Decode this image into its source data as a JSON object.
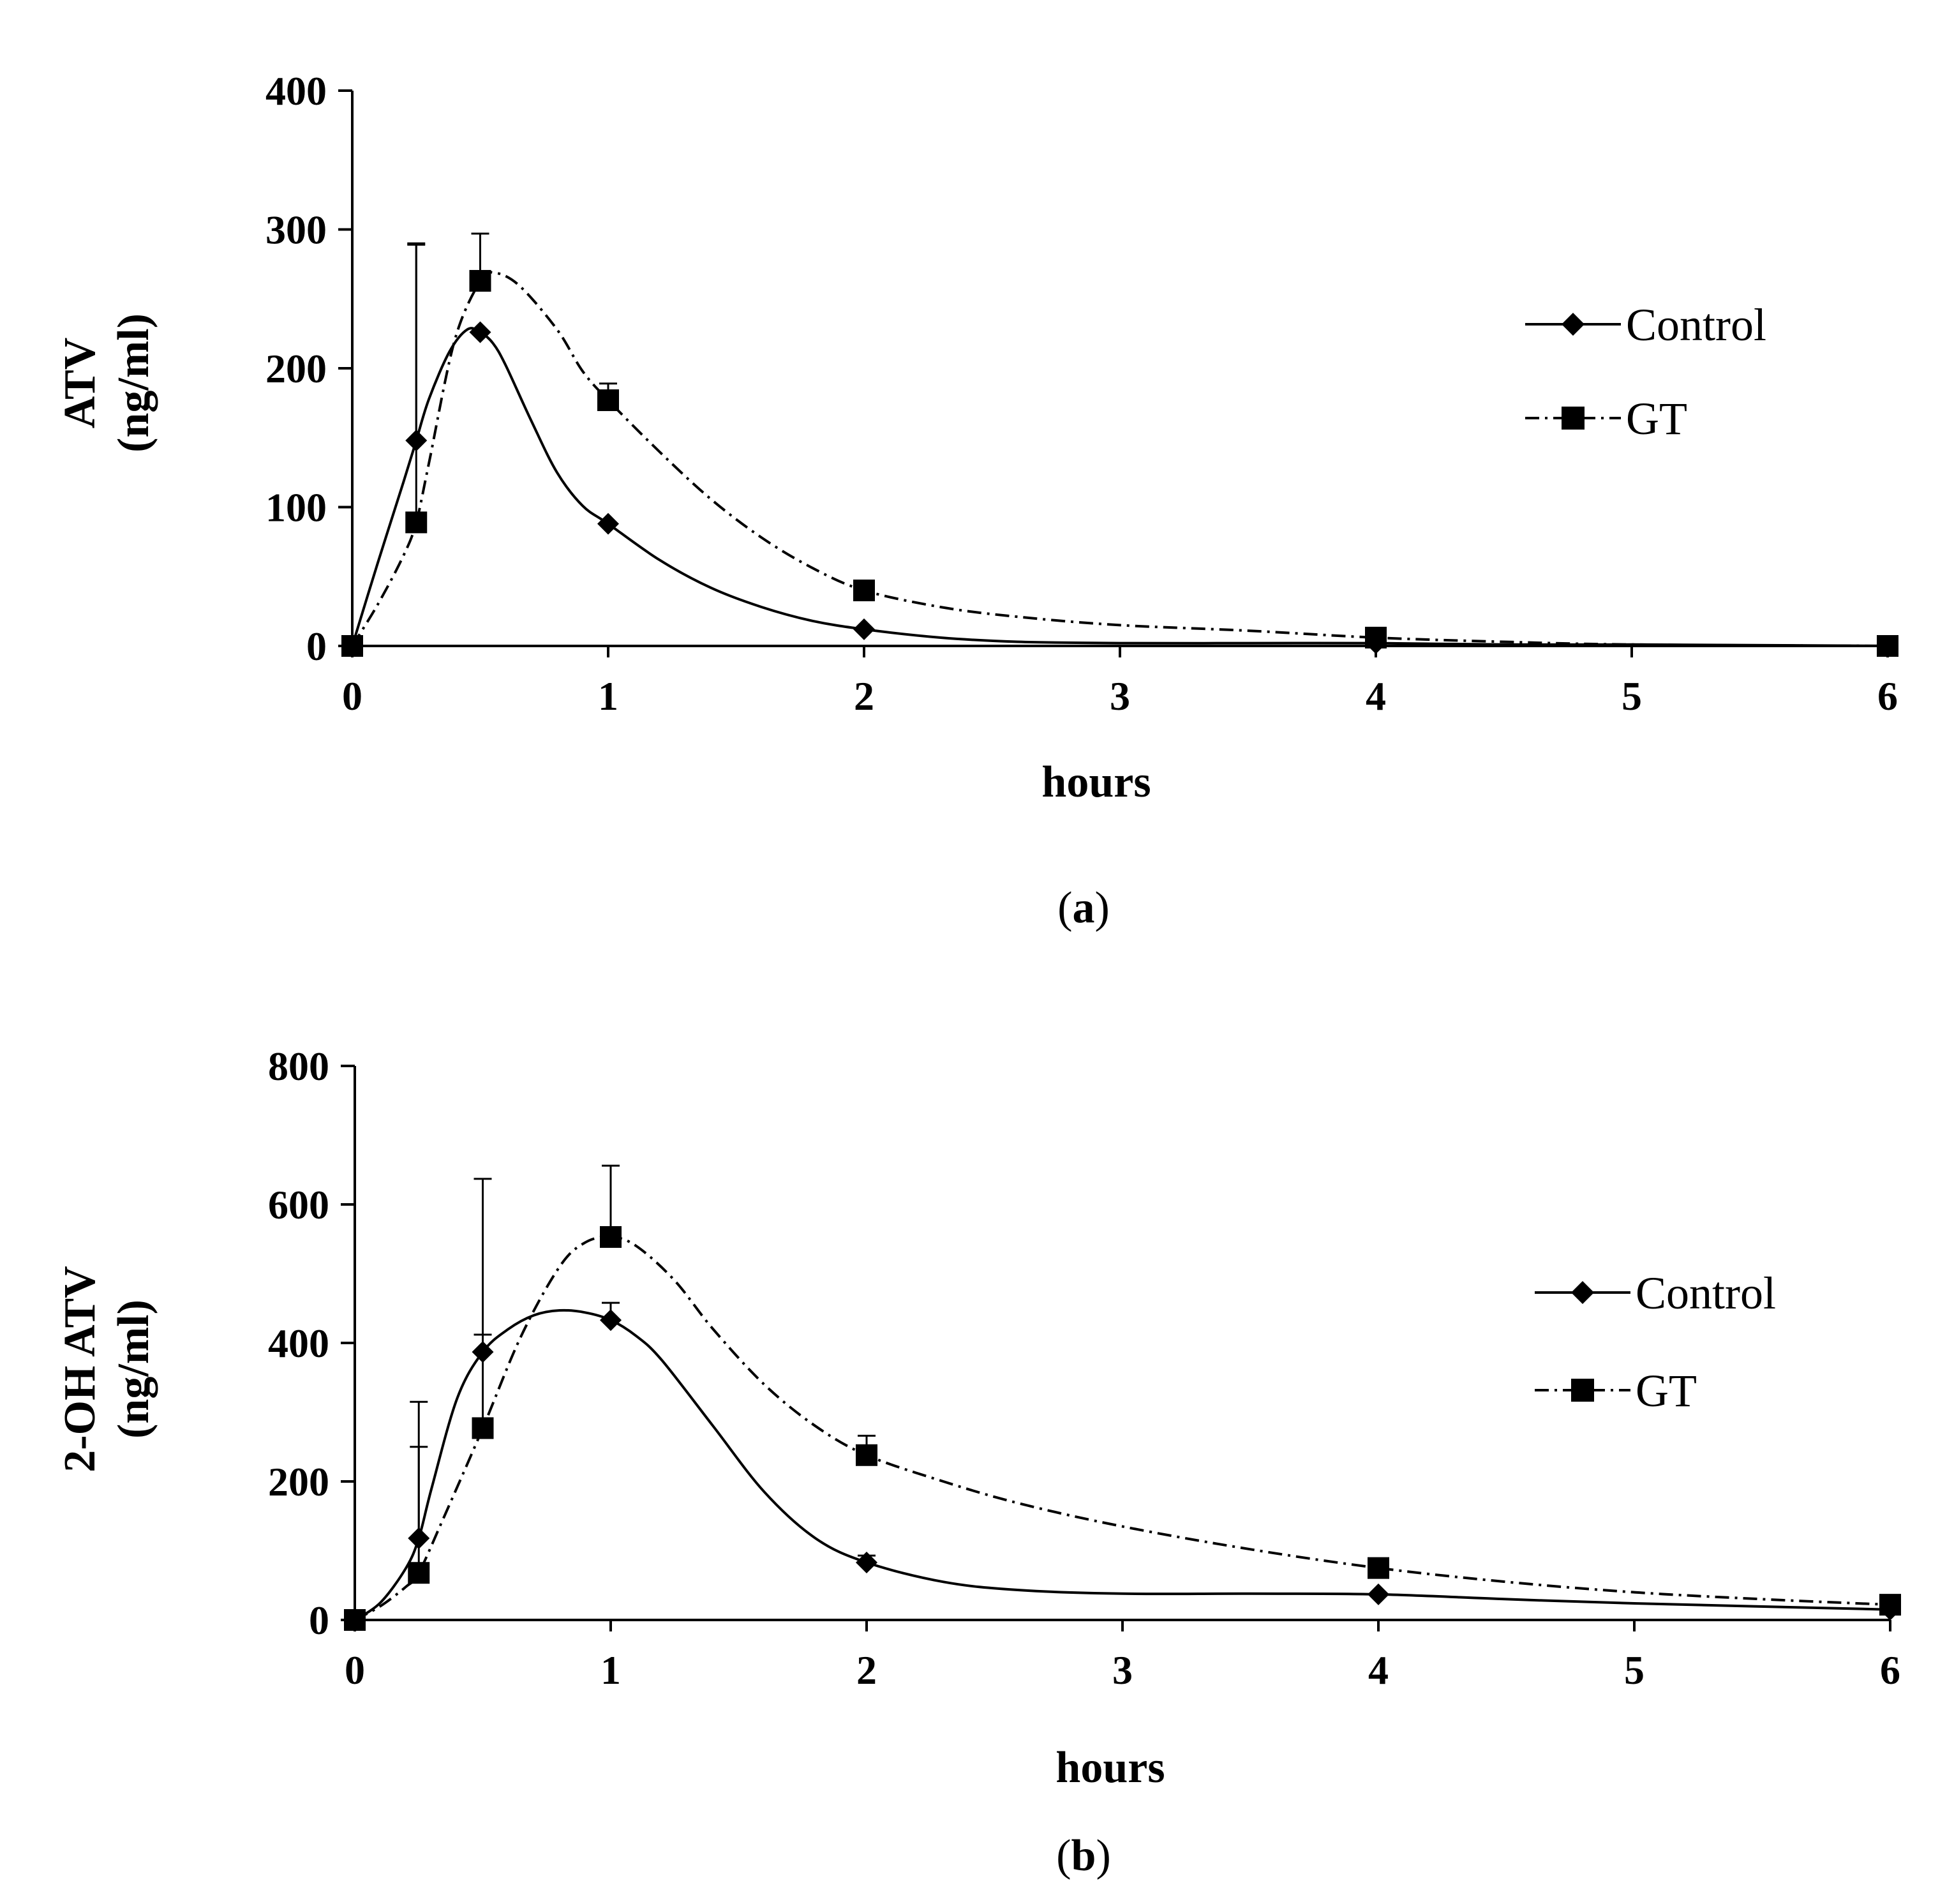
{
  "chart_data": [
    {
      "type": "line",
      "panel_label": "a",
      "caption_open": "(",
      "caption_close": ")",
      "xlabel": "hours",
      "ylabel_line1": "ATV",
      "ylabel_line2": "(ng/ml)",
      "xlim": [
        0,
        6
      ],
      "ylim": [
        0,
        400
      ],
      "xticks": [
        "0",
        "1",
        "2",
        "3",
        "4",
        "5",
        "6"
      ],
      "yticks": [
        "0",
        "100",
        "200",
        "300",
        "400"
      ],
      "legend": [
        "Control",
        "GT"
      ],
      "series": [
        {
          "name": "Control",
          "marker": "diamond",
          "line": "solid",
          "x": [
            0,
            0.25,
            0.5,
            1,
            2,
            4,
            6
          ],
          "y": [
            0,
            148,
            226,
            88,
            12,
            2,
            0
          ],
          "err": [
            0,
            142,
            0,
            0,
            0,
            0,
            0
          ],
          "smooth_x": [
            0,
            0.1,
            0.2,
            0.25,
            0.3,
            0.38,
            0.45,
            0.5,
            0.55,
            0.6,
            0.7,
            0.8,
            0.9,
            1,
            1.2,
            1.4,
            1.6,
            1.8,
            2,
            2.3,
            2.6,
            3,
            3.5,
            4,
            4.5,
            5,
            6
          ],
          "smooth_y": [
            0,
            60,
            118,
            148,
            178,
            212,
            228,
            226,
            218,
            202,
            162,
            125,
            101,
            88,
            62,
            42,
            28,
            18,
            12,
            6,
            3,
            2,
            2,
            2,
            1,
            1,
            0
          ]
        },
        {
          "name": "GT",
          "marker": "square",
          "line": "dashdot",
          "x": [
            0,
            0.25,
            0.5,
            1,
            2,
            4,
            6
          ],
          "y": [
            0,
            89,
            263,
            177,
            40,
            6,
            0
          ],
          "err": [
            0,
            200,
            34,
            12,
            0,
            0,
            0
          ],
          "smooth_x": [
            0,
            0.1,
            0.2,
            0.25,
            0.3,
            0.4,
            0.5,
            0.55,
            0.65,
            0.8,
            0.9,
            1,
            1.2,
            1.4,
            1.6,
            1.8,
            2,
            2.3,
            2.6,
            3,
            3.5,
            4,
            4.5,
            5,
            6
          ],
          "smooth_y": [
            0,
            30,
            65,
            89,
            132,
            220,
            263,
            269,
            260,
            228,
            198,
            177,
            140,
            106,
            78,
            56,
            40,
            28,
            21,
            15,
            11,
            6,
            3,
            1,
            0
          ]
        }
      ]
    },
    {
      "type": "line",
      "panel_label": "b",
      "caption_open": "(",
      "caption_close": ")",
      "xlabel": "hours",
      "ylabel_line1": "2-OH ATV",
      "ylabel_line2": "(ng/ml)",
      "xlim": [
        0,
        6
      ],
      "ylim": [
        0,
        800
      ],
      "xticks": [
        "0",
        "1",
        "2",
        "3",
        "4",
        "5",
        "6"
      ],
      "yticks": [
        "0",
        "200",
        "400",
        "600",
        "800"
      ],
      "legend": [
        "Control",
        "GT"
      ],
      "series": [
        {
          "name": "Control",
          "marker": "diamond",
          "line": "solid",
          "x": [
            0,
            0.25,
            0.5,
            1,
            2,
            4,
            6
          ],
          "y": [
            0,
            118,
            387,
            433,
            83,
            37,
            15
          ],
          "err": [
            0,
            197,
            25,
            25,
            10,
            0,
            0
          ],
          "smooth_x": [
            0,
            0.1,
            0.2,
            0.25,
            0.3,
            0.4,
            0.5,
            0.6,
            0.7,
            0.8,
            0.9,
            1,
            1.1,
            1.2,
            1.4,
            1.6,
            1.8,
            2,
            2.3,
            2.6,
            3,
            3.5,
            4,
            4.5,
            5,
            6
          ],
          "smooth_y": [
            0,
            25,
            75,
            118,
            190,
            320,
            387,
            420,
            440,
            447,
            444,
            433,
            410,
            375,
            280,
            185,
            118,
            83,
            55,
            43,
            38,
            38,
            37,
            30,
            24,
            15
          ],
          "end_x": 6.0
        },
        {
          "name": "GT",
          "marker": "square",
          "line": "dashdot",
          "x": [
            0,
            0.25,
            0.5,
            1,
            2,
            4,
            6
          ],
          "y": [
            0,
            68,
            277,
            553,
            238,
            75,
            22
          ],
          "err": [
            0,
            182,
            360,
            103,
            28,
            0,
            0
          ],
          "smooth_x": [
            0,
            0.1,
            0.2,
            0.25,
            0.35,
            0.5,
            0.65,
            0.8,
            0.9,
            1,
            1.1,
            1.25,
            1.4,
            1.6,
            1.8,
            2,
            2.3,
            2.6,
            3,
            3.5,
            4,
            4.5,
            5,
            5.5,
            6
          ],
          "smooth_y": [
            0,
            20,
            48,
            68,
            150,
            277,
            410,
            510,
            545,
            553,
            540,
            490,
            420,
            340,
            280,
            238,
            200,
            168,
            135,
            102,
            75,
            55,
            40,
            30,
            22
          ],
          "end_x": 6.0
        }
      ]
    }
  ]
}
